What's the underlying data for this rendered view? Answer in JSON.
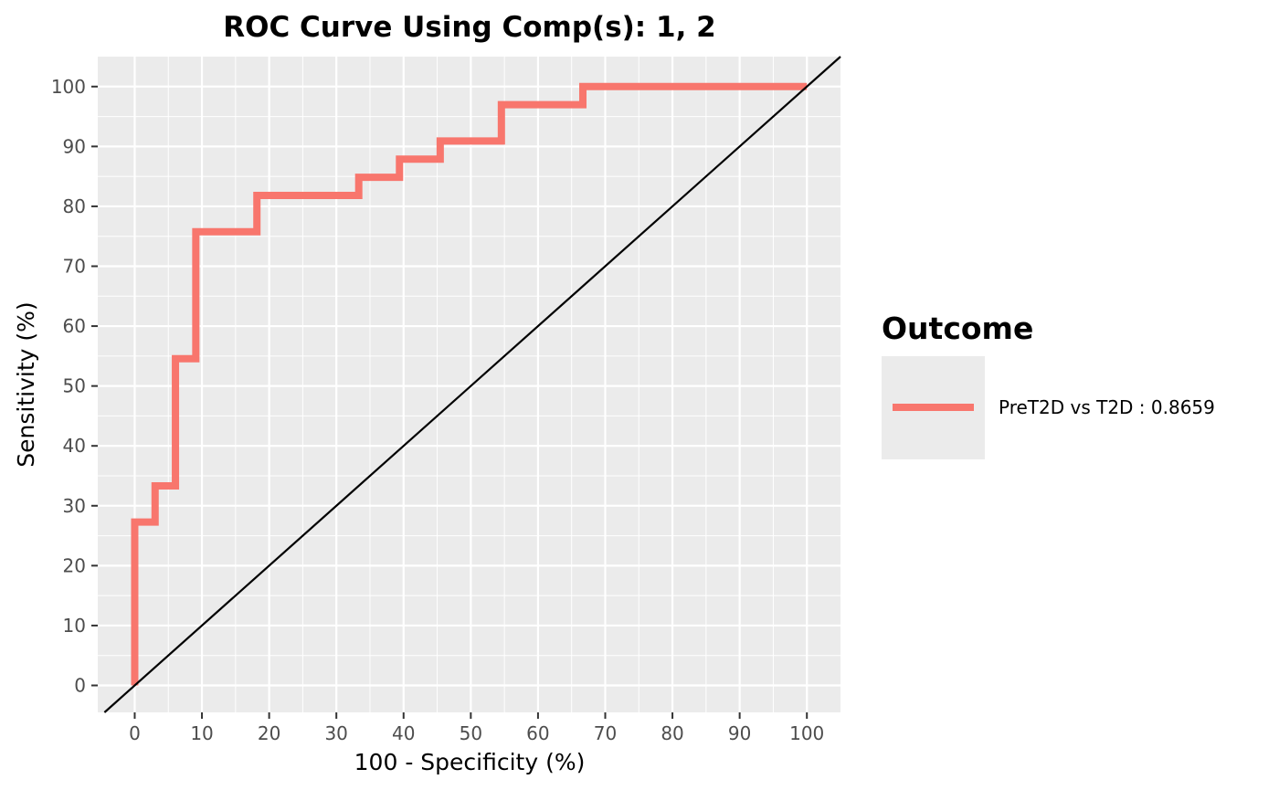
{
  "chart_data": {
    "type": "line",
    "title": "ROC Curve Using Comp(s): 1, 2",
    "xlabel": "100 - Specificity (%)",
    "ylabel": "Sensitivity (%)",
    "xlim": [
      -5.5,
      105
    ],
    "ylim": [
      -4.5,
      105
    ],
    "x_ticks": [
      0,
      10,
      20,
      30,
      40,
      50,
      60,
      70,
      80,
      90,
      100
    ],
    "y_ticks": [
      0,
      10,
      20,
      30,
      40,
      50,
      60,
      70,
      80,
      90,
      100
    ],
    "grid": true,
    "panel_background": "#ebebeb",
    "legend": {
      "title": "Outcome",
      "position": "right"
    },
    "series": [
      {
        "name": "PreT2D vs T2D : 0.8659",
        "color": "#f8766d",
        "step": true,
        "x": [
          0,
          0,
          3.03,
          3.03,
          6.06,
          6.06,
          9.09,
          9.09,
          18.18,
          18.18,
          33.33,
          33.33,
          39.39,
          39.39,
          45.45,
          45.45,
          54.55,
          54.55,
          66.67,
          66.67,
          100
        ],
        "y": [
          0,
          27.27,
          27.27,
          33.33,
          33.33,
          54.55,
          54.55,
          75.76,
          75.76,
          81.82,
          81.82,
          84.85,
          84.85,
          87.88,
          87.88,
          90.91,
          90.91,
          96.97,
          96.97,
          100,
          100
        ]
      }
    ],
    "reference_line": {
      "type": "diagonal",
      "slope": 1,
      "intercept": 0,
      "color": "#000000"
    }
  }
}
